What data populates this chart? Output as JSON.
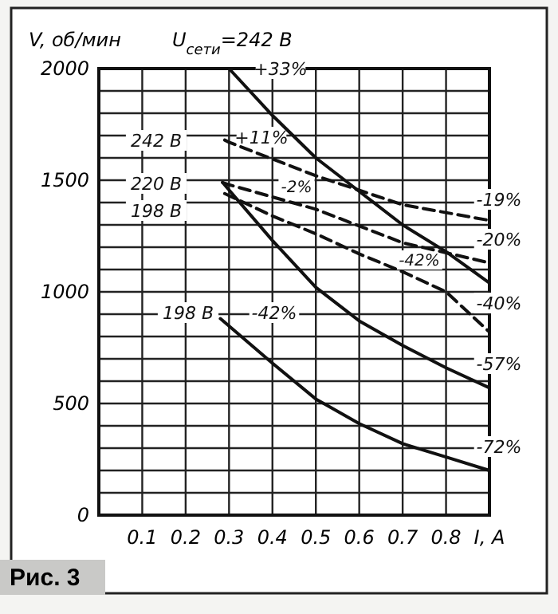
{
  "chart_data": {
    "type": "line",
    "title": "U$_{сети}$=242 В",
    "ylabel": "V, об/мин",
    "xlabel": "I, A",
    "xlim": [
      0,
      0.9
    ],
    "ylim": [
      0,
      2000
    ],
    "xticks": [
      0.1,
      0.2,
      0.3,
      0.4,
      0.5,
      0.6,
      0.7,
      0.8
    ],
    "yticks": [
      {
        "value": 0,
        "label": "0"
      },
      {
        "value": 100,
        "label": null
      },
      {
        "value": 200,
        "label": null
      },
      {
        "value": 300,
        "label": null
      },
      {
        "value": 400,
        "label": null
      },
      500,
      {
        "value": 600,
        "label": null
      },
      {
        "value": 700,
        "label": null
      },
      {
        "value": 800,
        "label": null
      },
      {
        "value": 900,
        "label": null
      },
      1000,
      {
        "value": 1100,
        "label": null
      },
      {
        "value": 1200,
        "label": null
      },
      {
        "value": 1300,
        "label": null
      },
      {
        "value": 1400,
        "label": null
      },
      1500,
      {
        "value": 1600,
        "label": null
      },
      {
        "value": 1700,
        "label": null
      },
      {
        "value": 1800,
        "label": null
      },
      {
        "value": 1900,
        "label": null
      },
      2000
    ],
    "grid": true,
    "marker": "none",
    "series": [
      {
        "color": "#111111",
        "line_style": "solid",
        "x": [
          0.3,
          0.4,
          0.5,
          0.6,
          0.7,
          0.8,
          0.9
        ],
        "values": [
          2000,
          1790,
          1600,
          1450,
          1300,
          1180,
          1040
        ]
      },
      {
        "color": "#111111",
        "line_style": "dashed",
        "x": [
          0.29,
          0.3,
          0.5,
          0.7,
          0.9
        ],
        "values": [
          1680,
          1670,
          1520,
          1390,
          1320
        ]
      },
      {
        "color": "#111111",
        "line_style": "dashed",
        "x": [
          0.285,
          0.3,
          0.5,
          0.7,
          0.9
        ],
        "values": [
          1490,
          1480,
          1370,
          1220,
          1130
        ]
      },
      {
        "color": "#111111",
        "line_style": "dashed",
        "x": [
          0.29,
          0.4,
          0.5,
          0.6,
          0.7,
          0.8,
          0.9
        ],
        "values": [
          1440,
          1340,
          1260,
          1170,
          1090,
          1000,
          820
        ]
      },
      {
        "color": "#111111",
        "line_style": "solid",
        "x": [
          0.285,
          0.4,
          0.5,
          0.6,
          0.7,
          0.8,
          0.9
        ],
        "values": [
          1490,
          1230,
          1020,
          870,
          760,
          660,
          570
        ]
      },
      {
        "color": "#111111",
        "line_style": "solid",
        "x": [
          0.28,
          0.4,
          0.5,
          0.6,
          0.7,
          0.8,
          0.9
        ],
        "values": [
          880,
          680,
          520,
          410,
          320,
          260,
          200
        ]
      }
    ],
    "annotations": [
      "+33%",
      "242 В",
      "+11%",
      "220 В",
      "198 В",
      "-2%",
      "-42%",
      "-19%",
      "-20%",
      "-40%",
      "-57%",
      "-72%",
      "198 В",
      "-42%",
      "Рис. 3"
    ]
  }
}
